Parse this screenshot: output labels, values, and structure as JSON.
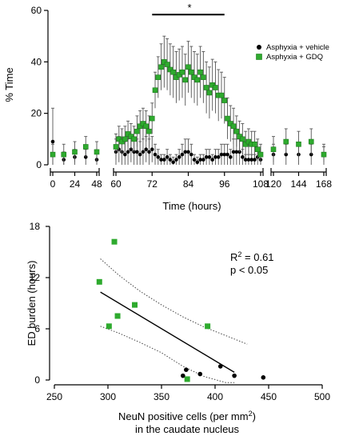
{
  "chart_data": [
    {
      "type": "scatter",
      "title": "",
      "xlabel": "Time (hours)",
      "ylabel": "% Time",
      "ylim": [
        0,
        60
      ],
      "yticks": [
        0,
        20,
        40,
        60
      ],
      "x_segments": [
        {
          "range": [
            0,
            48
          ],
          "ticks": [
            0,
            24,
            48
          ]
        },
        {
          "range": [
            60,
            108
          ],
          "ticks": [
            60,
            72,
            84,
            96,
            108
          ]
        },
        {
          "range": [
            120,
            168
          ],
          "ticks": [
            120,
            144,
            168
          ]
        }
      ],
      "significance": {
        "label": "*",
        "x_range": [
          72,
          96
        ],
        "y": 59
      },
      "legend": {
        "position": "top-right"
      },
      "series": [
        {
          "name": "Asphyxia + vehicle",
          "marker": "circle",
          "color": "#000000",
          "x": [
            0,
            12,
            24,
            36,
            48,
            60,
            61,
            62,
            63,
            64,
            65,
            66,
            67,
            68,
            69,
            70,
            71,
            72,
            73,
            74,
            75,
            76,
            77,
            78,
            79,
            80,
            81,
            82,
            83,
            84,
            85,
            86,
            87,
            88,
            89,
            90,
            91,
            92,
            93,
            94,
            95,
            96,
            97,
            98,
            99,
            100,
            101,
            102,
            103,
            104,
            105,
            106,
            107,
            108,
            120,
            132,
            144,
            156,
            168
          ],
          "y": [
            9,
            2,
            3,
            3,
            2,
            5,
            6,
            5,
            4,
            5,
            6,
            5,
            5,
            4,
            5,
            6,
            5,
            6,
            4,
            3,
            2,
            2,
            3,
            2,
            1,
            2,
            3,
            4,
            5,
            5,
            4,
            2,
            1,
            2,
            2,
            3,
            3,
            2,
            3,
            3,
            4,
            4,
            4,
            3,
            5,
            5,
            5,
            3,
            2,
            2,
            2,
            2,
            3,
            2,
            4,
            4,
            4,
            4,
            4
          ],
          "err": [
            13,
            3,
            3,
            3,
            3,
            5,
            5,
            5,
            5,
            5,
            5,
            5,
            5,
            5,
            5,
            5,
            5,
            5,
            4,
            3,
            2,
            2,
            3,
            2,
            2,
            2,
            3,
            4,
            5,
            5,
            4,
            2,
            2,
            2,
            2,
            3,
            3,
            2,
            3,
            3,
            4,
            4,
            4,
            3,
            5,
            5,
            5,
            3,
            2,
            2,
            2,
            2,
            3,
            2,
            4,
            4,
            4,
            4,
            4
          ]
        },
        {
          "name": "Asphyxia + GDQ",
          "marker": "square",
          "color": "#2eaa2e",
          "x": [
            0,
            12,
            24,
            36,
            48,
            60,
            61,
            62,
            63,
            64,
            65,
            66,
            67,
            68,
            69,
            70,
            71,
            72,
            73,
            74,
            75,
            76,
            77,
            78,
            79,
            80,
            81,
            82,
            83,
            84,
            85,
            86,
            87,
            88,
            89,
            90,
            91,
            92,
            93,
            94,
            95,
            96,
            97,
            98,
            99,
            100,
            101,
            102,
            103,
            104,
            105,
            106,
            107,
            108,
            120,
            132,
            144,
            156,
            168
          ],
          "y": [
            4,
            4,
            5,
            7,
            5,
            7,
            10,
            9,
            10,
            12,
            11,
            10,
            13,
            15,
            16,
            15,
            13,
            18,
            29,
            34,
            38,
            40,
            39,
            37,
            36,
            34,
            35,
            36,
            33,
            38,
            36,
            34,
            33,
            36,
            34,
            30,
            28,
            31,
            30,
            27,
            27,
            25,
            18,
            16,
            15,
            13,
            11,
            10,
            8,
            9,
            8,
            8,
            6,
            4,
            6,
            9,
            8,
            9,
            4
          ],
          "err": [
            4,
            4,
            4,
            4,
            4,
            5,
            5,
            5,
            5,
            5,
            5,
            5,
            6,
            6,
            6,
            6,
            6,
            6,
            7,
            8,
            9,
            10,
            10,
            10,
            10,
            10,
            10,
            10,
            10,
            10,
            10,
            10,
            10,
            10,
            10,
            10,
            10,
            10,
            10,
            10,
            9,
            9,
            8,
            7,
            7,
            6,
            6,
            6,
            5,
            5,
            5,
            5,
            4,
            4,
            5,
            5,
            5,
            5,
            3
          ]
        }
      ]
    },
    {
      "type": "scatter",
      "title": "",
      "xlabel": "NeuN positive cells (per mm",
      "xlabel_sup": "2",
      "xlabel_close": ")",
      "xlabel_line2": "in the caudate nucleus",
      "ylabel": "ED burden (hours)",
      "xlim": [
        250,
        500
      ],
      "ylim": [
        0,
        18
      ],
      "xticks": [
        250,
        300,
        350,
        400,
        450,
        500
      ],
      "yticks": [
        0,
        6,
        12,
        18
      ],
      "annotation": {
        "r2_prefix": "R",
        "r2_sup": "2",
        "r2_value": " = 0.61",
        "p": "p < 0.05"
      },
      "fit_line": {
        "x": [
          293,
          418
        ],
        "y": [
          10.3,
          0.9
        ]
      },
      "confidence_band": {
        "upper": {
          "x": [
            293,
            310,
            330,
            350,
            370,
            390,
            410,
            430
          ],
          "y": [
            14.2,
            12.3,
            10.4,
            8.8,
            7.4,
            6.2,
            5.2,
            4.2
          ]
        },
        "lower": {
          "x": [
            293,
            310,
            330,
            350,
            370,
            390,
            410,
            418
          ],
          "y": [
            6.3,
            5.5,
            4.4,
            3.2,
            1.6,
            0.4,
            -0.6,
            -1.0
          ]
        }
      },
      "series": [
        {
          "name": "",
          "marker": "square",
          "color": "#2eaa2e",
          "points": [
            {
              "x": 292,
              "y": 11.5
            },
            {
              "x": 301,
              "y": 6.3
            },
            {
              "x": 306,
              "y": 16.2
            },
            {
              "x": 309,
              "y": 7.5
            },
            {
              "x": 325,
              "y": 8.8
            },
            {
              "x": 374,
              "y": 0.1
            },
            {
              "x": 393,
              "y": 6.3
            }
          ]
        },
        {
          "name": "",
          "marker": "circle",
          "color": "#000000",
          "points": [
            {
              "x": 370,
              "y": 0.5
            },
            {
              "x": 373,
              "y": 1.2
            },
            {
              "x": 386,
              "y": 0.7
            },
            {
              "x": 405,
              "y": 1.6
            },
            {
              "x": 418,
              "y": 0.5
            },
            {
              "x": 445,
              "y": 0.3
            }
          ]
        }
      ]
    }
  ]
}
